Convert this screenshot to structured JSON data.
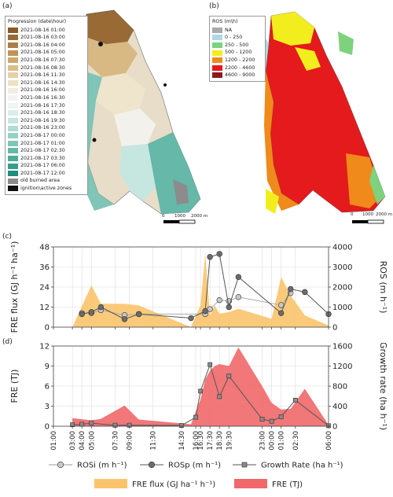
{
  "panels": {
    "a": "(a)",
    "b": "(b)",
    "c": "(c)",
    "d": "(d)"
  },
  "map_a": {
    "legend_title": "Progression (date\\hour)",
    "items": [
      {
        "label": "2021-08-16 01:00",
        "color": "#8a5a2b"
      },
      {
        "label": "2021-08-16 03:00",
        "color": "#9a6a35"
      },
      {
        "label": "2021-08-16 04:00",
        "color": "#ad7d45"
      },
      {
        "label": "2021-08-16 05:00",
        "color": "#bf9458"
      },
      {
        "label": "2021-08-16 07:30",
        "color": "#cda86c"
      },
      {
        "label": "2021-08-16 08:30",
        "color": "#dbbe87"
      },
      {
        "label": "2021-08-16 11:30",
        "color": "#e6d0a4"
      },
      {
        "label": "2021-08-16 14:30",
        "color": "#eee0c4"
      },
      {
        "label": "2021-08-16 16:00",
        "color": "#f3ece0"
      },
      {
        "label": "2021-08-16 16:30",
        "color": "#f4f3ef"
      },
      {
        "label": "2021-08-16 17:30",
        "color": "#eef5f3"
      },
      {
        "label": "2021-08-16 18:30",
        "color": "#dbeeea"
      },
      {
        "label": "2021-08-16 19:30",
        "color": "#c6e6e0"
      },
      {
        "label": "2021-08-16 23:00",
        "color": "#afdcd3"
      },
      {
        "label": "2021-08-17 00:00",
        "color": "#97d1c6"
      },
      {
        "label": "2021-08-17 01:00",
        "color": "#7fc5b8"
      },
      {
        "label": "2021-08-17 02:30",
        "color": "#66b8a9"
      },
      {
        "label": "2021-08-17 03:30",
        "color": "#4eab9a"
      },
      {
        "label": "2021-08-17 06:00",
        "color": "#379c8b"
      },
      {
        "label": "2021-08-17 12:00",
        "color": "#238c7b"
      },
      {
        "label": "old burned area",
        "color": "#8c8c8c"
      },
      {
        "label": "ignition\\active zones",
        "color": "#111111"
      }
    ],
    "scale_labels": [
      "0",
      "1000",
      "2000 m"
    ]
  },
  "map_b": {
    "legend_title": "ROS (m\\h)",
    "items": [
      {
        "label": "NA",
        "color": "#aaaaaa"
      },
      {
        "label": "0 - 250",
        "color": "#add8e6"
      },
      {
        "label": "250 - 500",
        "color": "#7ed27e"
      },
      {
        "label": "500 - 1200",
        "color": "#f2ee1e"
      },
      {
        "label": "1200 - 2200",
        "color": "#f08a1a"
      },
      {
        "label": "2200 - 4600",
        "color": "#e41a1c"
      },
      {
        "label": "4600 - 9000",
        "color": "#8b1a1a"
      }
    ],
    "scale_labels": [
      "0",
      "1000",
      "2000 m"
    ]
  },
  "legend": {
    "rosi": "ROSi (m h⁻¹)",
    "rosp": "ROSp (m h⁻¹)",
    "growth": "Growth Rate (ha h⁻¹)",
    "fre_flux": "FRE flux (GJ ha⁻¹ h⁻¹)",
    "fre": "FRE (TJ)"
  },
  "colors": {
    "fre_flux": "#f9c46b",
    "fre": "#f0686a",
    "rosi": "#c8c8c8",
    "rosp": "#6b6b6b",
    "growth": "#8a8a8a"
  },
  "chart_data": [
    {
      "type": "area",
      "panel": "(c)",
      "ylabel": "FRE flux (GJ h⁻¹ ha⁻¹)",
      "ylabel_right": "ROS (m h⁻¹)",
      "ylim": [
        0,
        48
      ],
      "yticks": [
        0,
        12,
        24,
        36,
        48
      ],
      "ylim_right": [
        0,
        4000
      ],
      "yticks_right": [
        0,
        1000,
        2000,
        3000,
        4000
      ],
      "xlim": [
        0,
        29
      ],
      "grid": true,
      "series": [
        {
          "name": "FRE flux (GJ ha⁻¹ h⁻¹)",
          "axis": "left",
          "kind": "area",
          "x": [
            2,
            4,
            5,
            7.5,
            9,
            14.5,
            15.5,
            16,
            16.5,
            17,
            17.5,
            18.5,
            19.5,
            23,
            24,
            25,
            26.5,
            29
          ],
          "y": [
            0,
            25,
            14,
            14,
            13,
            0,
            13,
            44,
            7,
            13,
            8,
            9,
            11,
            5,
            30,
            19,
            7,
            1
          ]
        },
        {
          "name": "ROSi (m h⁻¹)",
          "axis": "right",
          "kind": "line",
          "x": [
            3,
            4,
            5,
            7.5,
            9,
            16,
            16.5,
            17.5,
            18.5,
            19.5,
            24,
            25
          ],
          "y": [
            700,
            700,
            850,
            600,
            650,
            650,
            900,
            1350,
            1300,
            1500,
            1100,
            1700
          ]
        },
        {
          "name": "ROSp (m h⁻¹)",
          "axis": "right",
          "kind": "line",
          "x": [
            3,
            4,
            5,
            7.5,
            9,
            14.5,
            16,
            16.5,
            17.5,
            18.5,
            19.5,
            24,
            25,
            26.5,
            29
          ],
          "y": [
            650,
            750,
            1000,
            400,
            650,
            450,
            800,
            3500,
            3650,
            1000,
            2500,
            700,
            1900,
            1750,
            650
          ]
        }
      ]
    },
    {
      "type": "area",
      "panel": "(d)",
      "ylabel": "FRE (TJ)",
      "ylabel_right": "Growth rate (ha h⁻¹)",
      "ylim": [
        0,
        12
      ],
      "yticks": [
        0,
        3,
        6,
        9,
        12
      ],
      "ylim_right": [
        0,
        1600
      ],
      "yticks_right": [
        0,
        400,
        800,
        1200,
        1600
      ],
      "xlim": [
        0,
        29
      ],
      "xticks": [
        "01:00",
        "03:00",
        "04:00",
        "05:00",
        "07:30",
        "09:00",
        "11:30",
        "14:30",
        "16:00",
        "16:30",
        "17:30",
        "18:30",
        "19:30",
        "23:00",
        "00:00",
        "01:00",
        "02:30",
        "06:00"
      ],
      "xtick_pos": [
        0,
        2,
        3,
        4,
        6.5,
        8,
        10.5,
        13.5,
        15,
        15.5,
        16.5,
        17.5,
        18.5,
        22,
        23,
        24,
        25.5,
        29
      ],
      "grid": true,
      "series": [
        {
          "name": "FRE (TJ)",
          "axis": "left",
          "kind": "area",
          "x": [
            2,
            4,
            5,
            7.5,
            9,
            14.5,
            15.5,
            16,
            16.5,
            17,
            17.5,
            18.5,
            19.5,
            22,
            23,
            24,
            25,
            26.5,
            29
          ],
          "y": [
            1.2,
            0.9,
            1.1,
            3.1,
            1.0,
            0.3,
            4.0,
            7.0,
            8.3,
            9.0,
            9.3,
            9.0,
            11.8,
            6.0,
            3.5,
            2.5,
            2.6,
            5.6,
            0.2
          ]
        },
        {
          "name": "Growth Rate (ha h⁻¹)",
          "axis": "right",
          "kind": "line",
          "x": [
            2,
            3,
            4,
            6.5,
            8,
            13.5,
            15,
            15.5,
            16.5,
            17.5,
            18.5,
            22,
            23,
            24,
            25.5,
            29
          ],
          "y": [
            30,
            40,
            60,
            20,
            20,
            15,
            180,
            700,
            1230,
            590,
            1000,
            140,
            100,
            190,
            520,
            10
          ]
        }
      ]
    }
  ]
}
